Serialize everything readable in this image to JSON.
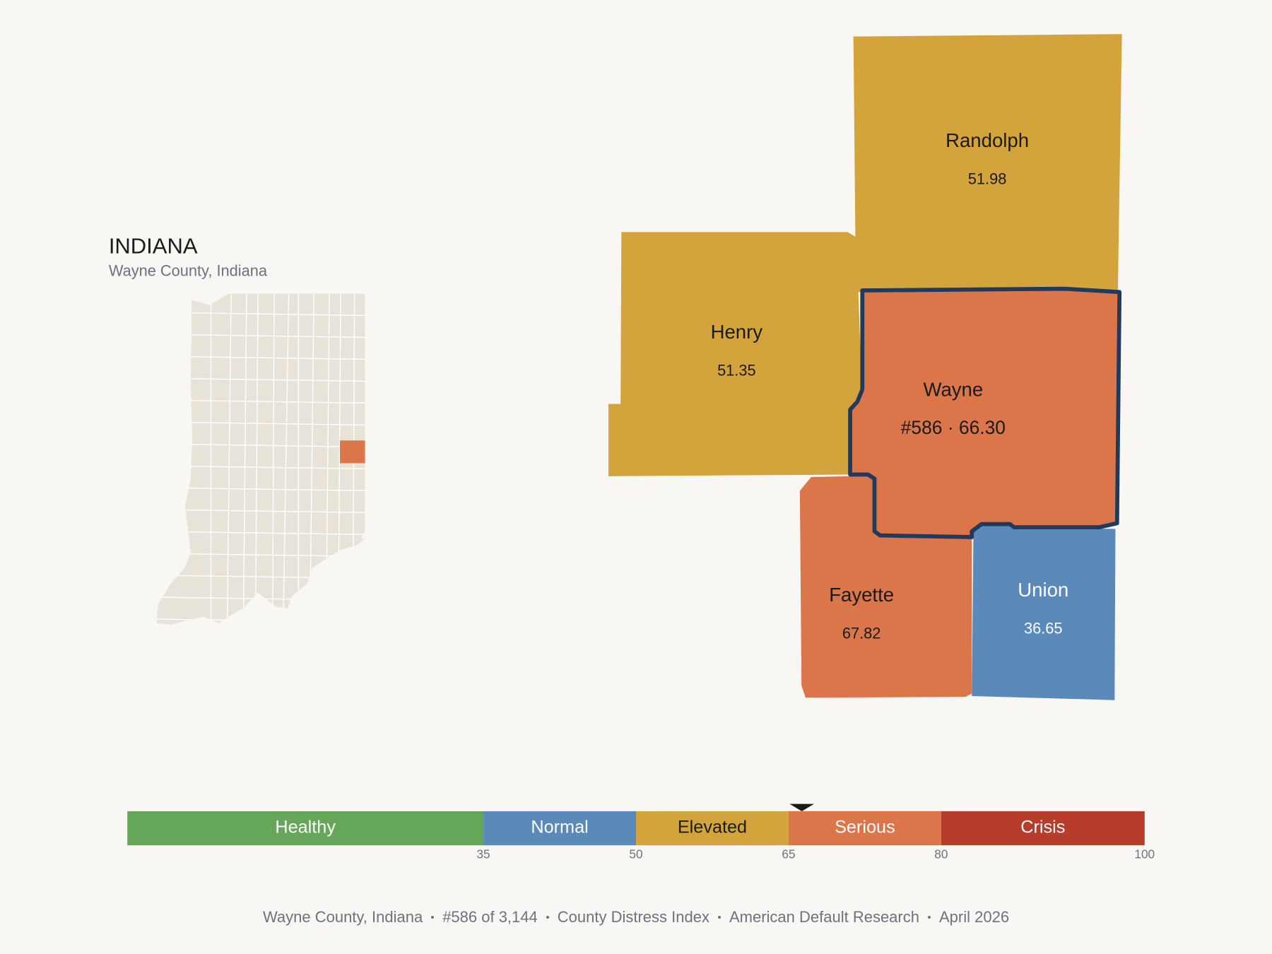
{
  "inset": {
    "state": "INDIANA",
    "subtitle": "Wayne County, Indiana"
  },
  "counties": [
    {
      "name": "Randolph",
      "value": 51.98,
      "color": "#d4a43c"
    },
    {
      "name": "Henry",
      "value": 51.35,
      "color": "#d4a43c"
    },
    {
      "name": "Wayne",
      "value": 66.3,
      "value_label": "#586 · 66.30",
      "color": "#da764a",
      "highlight": true
    },
    {
      "name": "Fayette",
      "value": 67.82,
      "color": "#da764a"
    },
    {
      "name": "Union",
      "value": 36.65,
      "color": "#5b8aba"
    }
  ],
  "scale": {
    "range": [
      0,
      100
    ],
    "ticks": [
      35,
      50,
      65,
      80,
      100
    ],
    "segments": [
      {
        "label": "Healthy",
        "color": "#66a659"
      },
      {
        "label": "Normal",
        "color": "#5b8aba"
      },
      {
        "label": "Elevated",
        "color": "#d4a43c"
      },
      {
        "label": "Serious",
        "color": "#da764a"
      },
      {
        "label": "Crisis",
        "color": "#b83c2b"
      }
    ]
  },
  "footer": [
    "Wayne County, Indiana",
    "#586 of 3,144",
    "County Distress Index",
    "American Default Research",
    "April 2026"
  ]
}
